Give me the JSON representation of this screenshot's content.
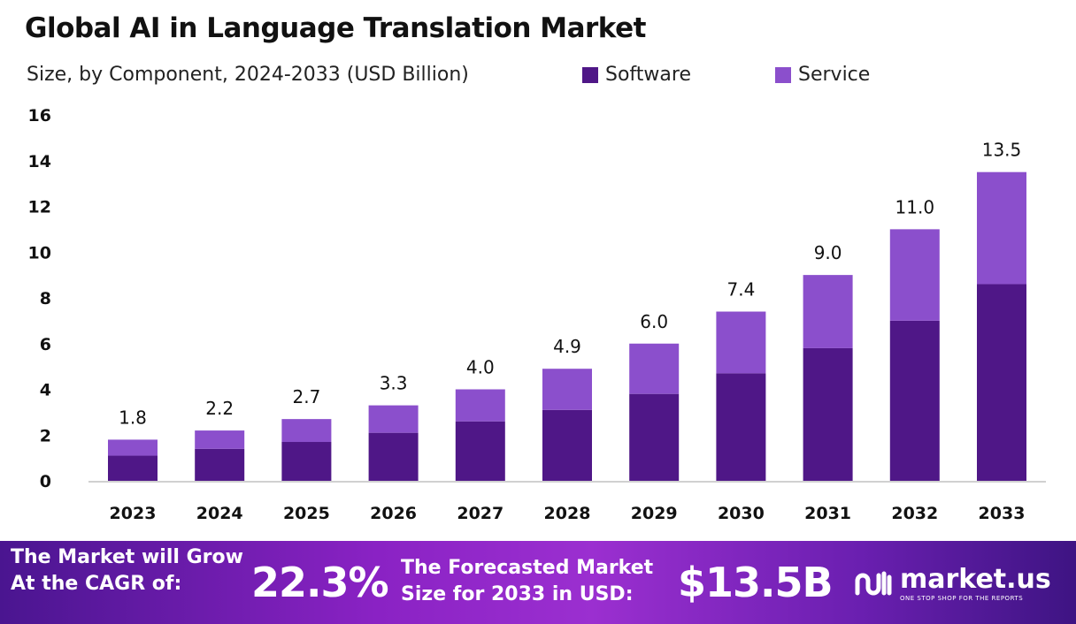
{
  "chart_data": {
    "type": "bar",
    "stacked": true,
    "title": "Global AI in Language Translation Market",
    "subtitle": "Size, by Component, 2024-2033 (USD Billion)",
    "categories": [
      "2023",
      "2024",
      "2025",
      "2026",
      "2027",
      "2028",
      "2029",
      "2030",
      "2031",
      "2032",
      "2033"
    ],
    "series": [
      {
        "name": "Software",
        "color": "#4f1787",
        "values": [
          1.1,
          1.4,
          1.7,
          2.1,
          2.6,
          3.1,
          3.8,
          4.7,
          5.8,
          7.0,
          8.6
        ]
      },
      {
        "name": "Service",
        "color": "#8b4fcc",
        "values": [
          0.7,
          0.8,
          1.0,
          1.2,
          1.4,
          1.8,
          2.2,
          2.7,
          3.2,
          4.0,
          4.9
        ]
      }
    ],
    "totals": [
      "1.8",
      "2.2",
      "2.7",
      "3.3",
      "4.0",
      "4.9",
      "6.0",
      "7.4",
      "9.0",
      "11.0",
      "13.5"
    ],
    "ylim": [
      0,
      16
    ],
    "yticks": [
      "0",
      "2",
      "4",
      "6",
      "8",
      "10",
      "12",
      "14",
      "16"
    ],
    "grid": false,
    "legend_position": "top"
  },
  "footer": {
    "cagr_label_1": "The Market will Grow",
    "cagr_label_2": "At the CAGR of:",
    "cagr_value": "22.3%",
    "forecast_label_1": "The Forecasted Market",
    "forecast_label_2": "Size for 2033 in USD:",
    "forecast_value": "$13.5B",
    "logo_text": "market.us",
    "logo_tagline": "ONE STOP SHOP FOR THE REPORTS"
  }
}
